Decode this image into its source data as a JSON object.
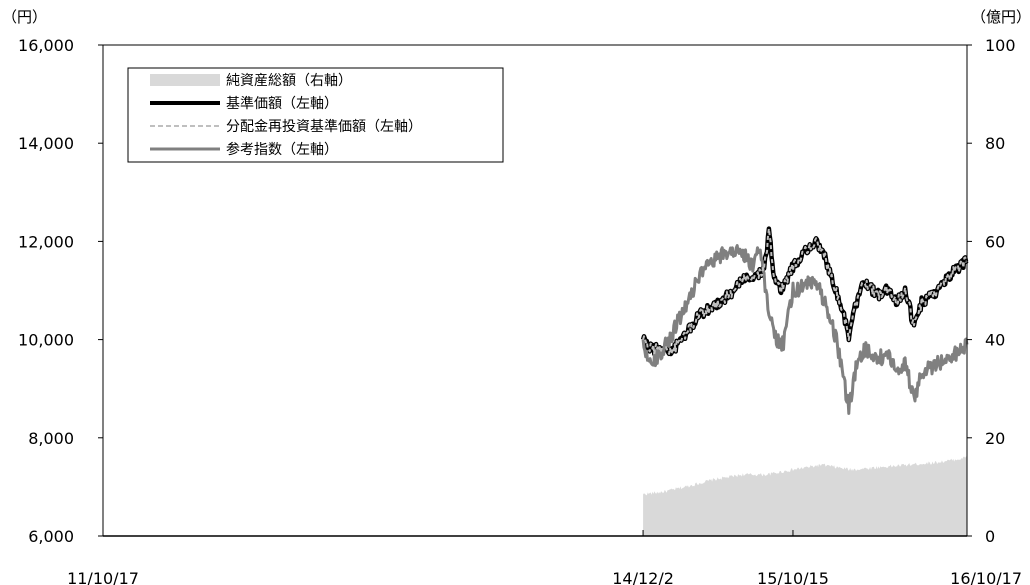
{
  "chart_data": {
    "type": "line",
    "left_axis_unit": "（円）",
    "right_axis_unit": "（億円）",
    "y_left": {
      "min": 6000,
      "max": 16000,
      "ticks": [
        6000,
        8000,
        10000,
        12000,
        14000,
        16000
      ],
      "tick_labels": [
        "6,000",
        "8,000",
        "10,000",
        "12,000",
        "14,000",
        "16,000"
      ]
    },
    "y_right": {
      "min": 0,
      "max": 100,
      "ticks": [
        0,
        20,
        40,
        60,
        80,
        100
      ],
      "tick_labels": [
        "0",
        "20",
        "40",
        "60",
        "80",
        "100"
      ]
    },
    "x_axis": {
      "start": "2011-10-17",
      "end": "2016-10-17",
      "tick_dates": [
        "2011-10-17",
        "2014-12-02",
        "2015-10-15",
        "2016-10-17"
      ],
      "tick_labels": [
        "11/10/17",
        "14/12/2",
        "15/10/15",
        "16/10/17"
      ]
    },
    "legend": {
      "position": "top-left",
      "items": [
        "純資産総額（右軸）",
        "基準価額（左軸）",
        "分配金再投資基準価額（左軸）",
        "参考指数（左軸）"
      ]
    },
    "series": [
      {
        "name": "純資産総額（右軸）",
        "axis": "right",
        "style": "area",
        "color": "#d9d9d9",
        "points": [
          [
            "2014-12-02",
            8.5
          ],
          [
            "2015-01-15",
            9
          ],
          [
            "2015-03-01",
            10
          ],
          [
            "2015-05-01",
            11.5
          ],
          [
            "2015-07-01",
            12.5
          ],
          [
            "2015-08-20",
            12.5
          ],
          [
            "2015-10-15",
            13.5
          ],
          [
            "2015-12-15",
            14.5
          ],
          [
            "2016-02-15",
            13.5
          ],
          [
            "2016-04-15",
            14
          ],
          [
            "2016-06-15",
            14.5
          ],
          [
            "2016-08-15",
            15
          ],
          [
            "2016-09-20",
            15.5
          ],
          [
            "2016-10-17",
            16
          ]
        ]
      },
      {
        "name": "基準価額（左軸）",
        "axis": "left",
        "style": "line",
        "color": "#000000",
        "points": [
          [
            "2014-12-02",
            10000
          ],
          [
            "2014-12-20",
            9800
          ],
          [
            "2015-01-10",
            9850
          ],
          [
            "2015-02-01",
            9750
          ],
          [
            "2015-03-01",
            10100
          ],
          [
            "2015-04-01",
            10500
          ],
          [
            "2015-05-01",
            10700
          ],
          [
            "2015-06-01",
            10900
          ],
          [
            "2015-07-01",
            11200
          ],
          [
            "2015-07-25",
            11300
          ],
          [
            "2015-08-15",
            11400
          ],
          [
            "2015-08-25",
            12200
          ],
          [
            "2015-09-05",
            11300
          ],
          [
            "2015-09-20",
            11000
          ],
          [
            "2015-10-15",
            11500
          ],
          [
            "2015-11-10",
            11800
          ],
          [
            "2015-12-01",
            12000
          ],
          [
            "2015-12-20",
            11700
          ],
          [
            "2016-01-15",
            11000
          ],
          [
            "2016-02-10",
            10100
          ],
          [
            "2016-02-25",
            10700
          ],
          [
            "2016-03-15",
            11200
          ],
          [
            "2016-04-10",
            10900
          ],
          [
            "2016-05-01",
            11000
          ],
          [
            "2016-05-20",
            10800
          ],
          [
            "2016-06-10",
            11000
          ],
          [
            "2016-06-25",
            10300
          ],
          [
            "2016-07-15",
            10800
          ],
          [
            "2016-08-10",
            10900
          ],
          [
            "2016-09-01",
            11200
          ],
          [
            "2016-09-20",
            11400
          ],
          [
            "2016-10-17",
            11600
          ]
        ]
      },
      {
        "name": "分配金再投資基準価額（左軸）",
        "axis": "left",
        "style": "dashed",
        "color": "#bfbfbf",
        "points": [
          [
            "2014-12-02",
            10000
          ],
          [
            "2014-12-20",
            9800
          ],
          [
            "2015-01-10",
            9850
          ],
          [
            "2015-02-01",
            9750
          ],
          [
            "2015-03-01",
            10100
          ],
          [
            "2015-04-01",
            10500
          ],
          [
            "2015-05-01",
            10700
          ],
          [
            "2015-06-01",
            10900
          ],
          [
            "2015-07-01",
            11200
          ],
          [
            "2015-07-25",
            11300
          ],
          [
            "2015-08-15",
            11400
          ],
          [
            "2015-08-25",
            12200
          ],
          [
            "2015-09-05",
            11300
          ],
          [
            "2015-09-20",
            11000
          ],
          [
            "2015-10-15",
            11500
          ],
          [
            "2015-11-10",
            11800
          ],
          [
            "2015-12-01",
            12000
          ],
          [
            "2015-12-20",
            11700
          ],
          [
            "2016-01-15",
            11000
          ],
          [
            "2016-02-10",
            10100
          ],
          [
            "2016-02-25",
            10700
          ],
          [
            "2016-03-15",
            11200
          ],
          [
            "2016-04-10",
            10900
          ],
          [
            "2016-05-01",
            11000
          ],
          [
            "2016-05-20",
            10800
          ],
          [
            "2016-06-10",
            11000
          ],
          [
            "2016-06-25",
            10300
          ],
          [
            "2016-07-15",
            10800
          ],
          [
            "2016-08-10",
            10900
          ],
          [
            "2016-09-01",
            11200
          ],
          [
            "2016-09-20",
            11400
          ],
          [
            "2016-10-17",
            11600
          ]
        ]
      },
      {
        "name": "参考指数（左軸）",
        "axis": "left",
        "style": "line",
        "color": "#808080",
        "points": [
          [
            "2014-12-02",
            10000
          ],
          [
            "2014-12-15",
            9500
          ],
          [
            "2015-01-05",
            9700
          ],
          [
            "2015-02-01",
            10100
          ],
          [
            "2015-03-01",
            10700
          ],
          [
            "2015-04-01",
            11300
          ],
          [
            "2015-05-01",
            11600
          ],
          [
            "2015-06-01",
            11800
          ],
          [
            "2015-07-01",
            11800
          ],
          [
            "2015-07-20",
            11500
          ],
          [
            "2015-08-05",
            11900
          ],
          [
            "2015-08-25",
            10600
          ],
          [
            "2015-09-10",
            10000
          ],
          [
            "2015-09-25",
            9900
          ],
          [
            "2015-10-15",
            11000
          ],
          [
            "2015-11-10",
            11100
          ],
          [
            "2015-12-01",
            11200
          ],
          [
            "2015-12-20",
            10800
          ],
          [
            "2016-01-15",
            10000
          ],
          [
            "2016-02-10",
            8600
          ],
          [
            "2016-02-25",
            9400
          ],
          [
            "2016-03-15",
            9800
          ],
          [
            "2016-04-10",
            9600
          ],
          [
            "2016-05-01",
            9700
          ],
          [
            "2016-05-20",
            9400
          ],
          [
            "2016-06-10",
            9500
          ],
          [
            "2016-06-25",
            8800
          ],
          [
            "2016-07-15",
            9300
          ],
          [
            "2016-08-10",
            9500
          ],
          [
            "2016-09-01",
            9600
          ],
          [
            "2016-09-20",
            9700
          ],
          [
            "2016-10-17",
            9900
          ]
        ]
      }
    ]
  }
}
